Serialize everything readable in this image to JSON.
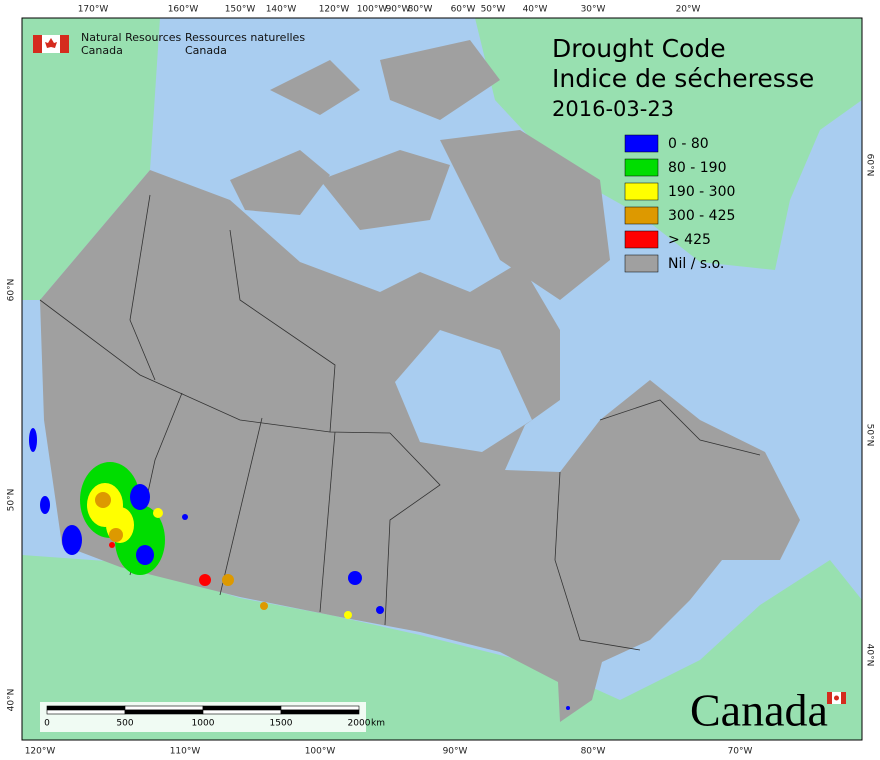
{
  "header": {
    "department_en": [
      "Natural Resources",
      "Canada"
    ],
    "department_fr": [
      "Ressources naturelles",
      "Canada"
    ]
  },
  "title": [
    "Drought Code",
    "Indice de sécheresse"
  ],
  "date": "2016-03-23",
  "legend": [
    {
      "label": "0 - 80",
      "color": "#0000ff"
    },
    {
      "label": "80 - 190",
      "color": "#00dd00"
    },
    {
      "label": "190 - 300",
      "color": "#ffff00"
    },
    {
      "label": "300 - 425",
      "color": "#dd9900"
    },
    {
      "label": "> 425",
      "color": "#ff0000"
    },
    {
      "label": "Nil / s.o.",
      "color": "#a0a0a0"
    }
  ],
  "longitude_labels_top": [
    "170°W",
    "160°W",
    "150°W",
    "140°W",
    "120°W",
    "100°W",
    "90°W",
    "80°W",
    "60°W",
    "50°W",
    "40°W",
    "30°W",
    "20°W"
  ],
  "longitude_labels_bottom": [
    "120°W",
    "110°W",
    "100°W",
    "90°W",
    "80°W",
    "70°W"
  ],
  "latitude_labels_left": [
    "60°N",
    "50°N",
    "40°N"
  ],
  "latitude_labels_right": [
    "60°N",
    "50°N",
    "40°N"
  ],
  "scale_bar": {
    "labels": [
      "0",
      "500",
      "1000",
      "1500",
      "2000"
    ],
    "unit": "km"
  },
  "wordmark": "Canada"
}
